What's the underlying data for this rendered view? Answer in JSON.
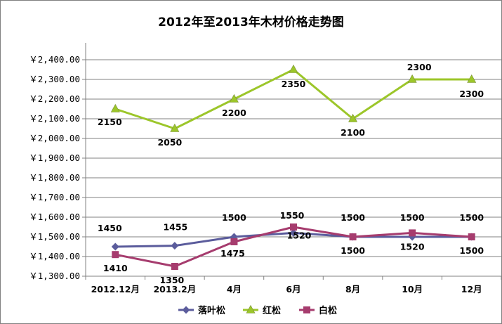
{
  "chart_data": {
    "type": "line",
    "title": "2012年至2013年木材价格走势图",
    "categories": [
      "2012.12月",
      "2013.2月",
      "4月",
      "6月",
      "8月",
      "10月",
      "12月"
    ],
    "ylim": [
      1300,
      2450
    ],
    "y_ticks": [
      1300,
      1400,
      1500,
      1600,
      1700,
      1800,
      1900,
      2000,
      2100,
      2200,
      2300,
      2400
    ],
    "y_tick_labels": [
      "￥1,300.00",
      "￥1,400.00",
      "￥1,500.00",
      "￥1,600.00",
      "￥1,700.00",
      "￥1,800.00",
      "￥1,900.00",
      "￥2,000.00",
      "￥2,100.00",
      "￥2,200.00",
      "￥2,300.00",
      "￥2,400.00"
    ],
    "grid": "horizontal",
    "legend_position": "bottom",
    "series": [
      {
        "name": "落叶松",
        "color": "#5B5C9C",
        "marker": "diamond",
        "values": [
          1450,
          1455,
          1500,
          1520,
          1500,
          1500,
          1500
        ],
        "data_labels": [
          "1450",
          "1455",
          "1500",
          "1520",
          "1500",
          "1500",
          "1500"
        ]
      },
      {
        "name": "红松",
        "color": "#9CC62A",
        "marker": "triangle",
        "values": [
          2150,
          2050,
          2200,
          2350,
          2100,
          2300,
          2300
        ],
        "data_labels": [
          "2150",
          "2050",
          "2200",
          "2350",
          "2100",
          "2300",
          "2300"
        ]
      },
      {
        "name": "白松",
        "color": "#A63C6E",
        "marker": "square",
        "values": [
          1410,
          1350,
          1475,
          1550,
          1500,
          1520,
          1500
        ],
        "data_labels": [
          "1410",
          "1350",
          "1475",
          "1550",
          "1500",
          "1520",
          "1500"
        ]
      }
    ]
  }
}
